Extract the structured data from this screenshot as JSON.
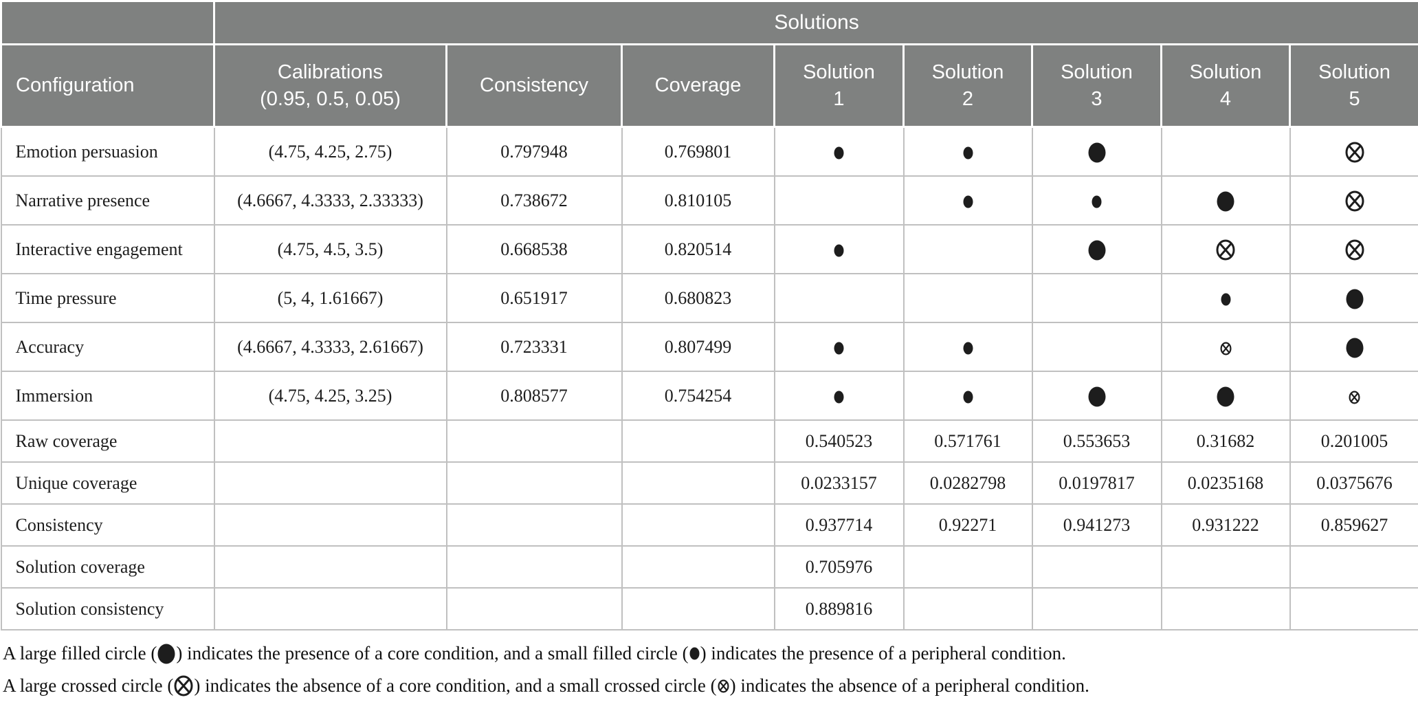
{
  "colors": {
    "header_bg": "#7f8180",
    "header_text": "#ffffff",
    "symbol": "#1d1d1d",
    "border": "#c0c0c0"
  },
  "table": {
    "group_header": "Solutions",
    "columns": [
      "Configuration",
      "Calibrations\n(0.95, 0.5, 0.05)",
      "Consistency",
      "Coverage",
      "Solution\n1",
      "Solution\n2",
      "Solution\n3",
      "Solution\n4",
      "Solution\n5"
    ],
    "condition_rows": [
      {
        "label": "Emotion persuasion",
        "calibrations": "(4.75, 4.25, 2.75)",
        "consistency": "0.797948",
        "coverage": "0.769801",
        "solutions": [
          "peripheral-present",
          "peripheral-present",
          "core-present",
          "",
          "core-absent"
        ]
      },
      {
        "label": "Narrative presence",
        "calibrations": "(4.6667, 4.3333, 2.33333)",
        "consistency": "0.738672",
        "coverage": "0.810105",
        "solutions": [
          "",
          "peripheral-present",
          "peripheral-present",
          "core-present",
          "core-absent"
        ]
      },
      {
        "label": "Interactive engagement",
        "calibrations": "(4.75, 4.5, 3.5)",
        "consistency": "0.668538",
        "coverage": "0.820514",
        "solutions": [
          "peripheral-present",
          "",
          "core-present",
          "core-absent",
          "core-absent"
        ]
      },
      {
        "label": "Time pressure",
        "calibrations": "(5, 4, 1.61667)",
        "consistency": "0.651917",
        "coverage": "0.680823",
        "solutions": [
          "",
          "",
          "",
          "peripheral-present",
          "core-present"
        ]
      },
      {
        "label": "Accuracy",
        "calibrations": "(4.6667, 4.3333, 2.61667)",
        "consistency": "0.723331",
        "coverage": "0.807499",
        "solutions": [
          "peripheral-present",
          "peripheral-present",
          "",
          "peripheral-absent",
          "core-present"
        ]
      },
      {
        "label": "Immersion",
        "calibrations": "(4.75, 4.25, 3.25)",
        "consistency": "0.808577",
        "coverage": "0.754254",
        "solutions": [
          "peripheral-present",
          "peripheral-present",
          "core-present",
          "core-present",
          "peripheral-absent"
        ]
      }
    ],
    "stat_rows": [
      {
        "label": "Raw coverage",
        "values": [
          "0.540523",
          "0.571761",
          "0.553653",
          "0.31682",
          "0.201005"
        ]
      },
      {
        "label": "Unique coverage",
        "values": [
          "0.0233157",
          "0.0282798",
          "0.0197817",
          "0.0235168",
          "0.0375676"
        ]
      },
      {
        "label": "Consistency",
        "values": [
          "0.937714",
          "0.92271",
          "0.941273",
          "0.931222",
          "0.859627"
        ]
      },
      {
        "label": "Solution coverage",
        "values": [
          "0.705976",
          "",
          "",
          "",
          ""
        ]
      },
      {
        "label": "Solution consistency",
        "values": [
          "0.889816",
          "",
          "",
          "",
          ""
        ]
      }
    ]
  },
  "footnotes": [
    {
      "segments": [
        {
          "text": "A large filled circle ("
        },
        {
          "symbol": "core-present"
        },
        {
          "text": ") indicates the presence of a core condition, and a small filled circle ("
        },
        {
          "symbol": "peripheral-present"
        },
        {
          "text": ") indicates the presence of a peripheral condition."
        }
      ]
    },
    {
      "segments": [
        {
          "text": "A large crossed circle ("
        },
        {
          "symbol": "core-absent"
        },
        {
          "text": ") indicates the absence of a core condition, and a small crossed circle ("
        },
        {
          "symbol": "peripheral-absent"
        },
        {
          "text": ") indicates the absence of a peripheral condition."
        }
      ]
    }
  ]
}
